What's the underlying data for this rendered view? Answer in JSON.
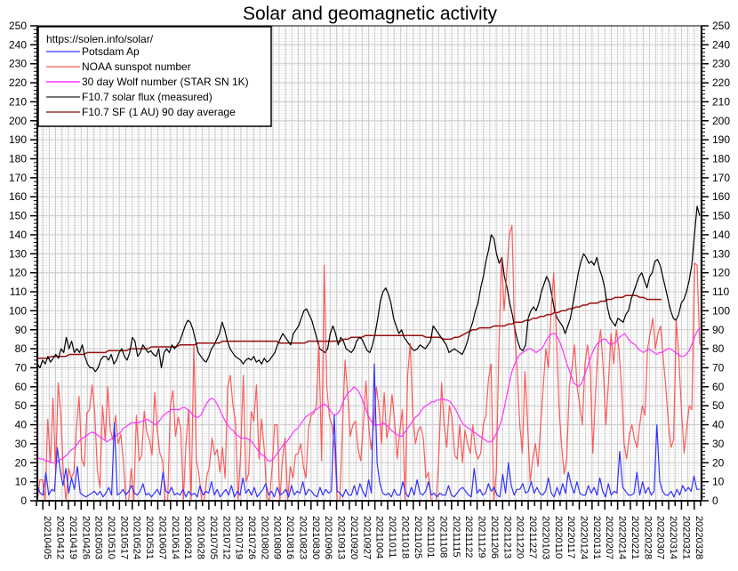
{
  "chart_data": {
    "type": "line",
    "title": "Solar and geomagnetic activity",
    "xlabel": "",
    "ylabel": "",
    "ylim": [
      0,
      250
    ],
    "yticks": [
      0,
      10,
      20,
      30,
      40,
      50,
      60,
      70,
      80,
      90,
      100,
      110,
      120,
      130,
      140,
      150,
      160,
      170,
      180,
      190,
      200,
      210,
      220,
      230,
      240,
      250
    ],
    "grid": true,
    "legend_position": "top-left",
    "legend_header": "https://solen.info/solar/",
    "x_start_date": "2021-04-02",
    "x_end_date": "2022-04-01",
    "x_step_days": 2,
    "xtick_labels": [
      "20210405",
      "20210412",
      "20210419",
      "20210426",
      "20210503",
      "20210510",
      "20210517",
      "20210524",
      "20210531",
      "20210607",
      "20210614",
      "20210621",
      "20210628",
      "20210705",
      "20210712",
      "20210719",
      "20210726",
      "20210802",
      "20210809",
      "20210816",
      "20210823",
      "20210830",
      "20210906",
      "20210913",
      "20210920",
      "20210927",
      "20211004",
      "20211011",
      "20211018",
      "20211025",
      "20211101",
      "20211108",
      "20211115",
      "20211122",
      "20211129",
      "20211206",
      "20211213",
      "20211220",
      "20211227",
      "20220103",
      "20220110",
      "20220117",
      "20220124",
      "20220131",
      "20220207",
      "20220214",
      "20220221",
      "20220228",
      "20220307",
      "20220314",
      "20220321",
      "20220328"
    ],
    "series": [
      {
        "name": "Potsdam Ap",
        "color": "#3333ff",
        "values": [
          8,
          4,
          3,
          15,
          3,
          6,
          5,
          28,
          16,
          8,
          17,
          4,
          12,
          6,
          18,
          4,
          3,
          2,
          3,
          4,
          5,
          3,
          5,
          2,
          4,
          7,
          3,
          41,
          3,
          4,
          6,
          3,
          5,
          8,
          4,
          3,
          5,
          9,
          3,
          4,
          2,
          4,
          6,
          3,
          15,
          5,
          4,
          7,
          3,
          4,
          3,
          6,
          2,
          5,
          3,
          4,
          2,
          8,
          3,
          5,
          4,
          10,
          3,
          6,
          2,
          4,
          6,
          3,
          8,
          2,
          5,
          3,
          12,
          4,
          6,
          3,
          7,
          2,
          4,
          6,
          9,
          3,
          5,
          2,
          7,
          3,
          4,
          6,
          2,
          8,
          3,
          5,
          4,
          10,
          3,
          6,
          5,
          3,
          2,
          7,
          3,
          6,
          4,
          5,
          45,
          5,
          4,
          2,
          6,
          3,
          3,
          8,
          3,
          9,
          5,
          2,
          11,
          4,
          72,
          20,
          9,
          4,
          3,
          4,
          2,
          6,
          3,
          3,
          10,
          4,
          2,
          7,
          3,
          11,
          4,
          3,
          5,
          10,
          3,
          4,
          2,
          4,
          3,
          3,
          8,
          3,
          2,
          4,
          6,
          7,
          5,
          3,
          2,
          17,
          4,
          6,
          3,
          4,
          9,
          5,
          7,
          3,
          2,
          14,
          4,
          20,
          8,
          3,
          6,
          6,
          9,
          4,
          5,
          10,
          4,
          7,
          4,
          3,
          5,
          12,
          4,
          2,
          7,
          3,
          9,
          4,
          15,
          8,
          4,
          10,
          4,
          3,
          3,
          8,
          4,
          7,
          3,
          12,
          5,
          2,
          9,
          3,
          5,
          4,
          26,
          7,
          5,
          3,
          3,
          4,
          15,
          3,
          10,
          4,
          7,
          3,
          5,
          40,
          10,
          5,
          3,
          3,
          5,
          2,
          6,
          3,
          8,
          5,
          7,
          5,
          13,
          6,
          6
        ],
        "note": "approximate daily values sampled every 2 days"
      },
      {
        "name": "NOAA sunspot number",
        "color": "#ff3333",
        "values": [
          0,
          11,
          11,
          0,
          43,
          20,
          54,
          16,
          62,
          45,
          14,
          0,
          17,
          12,
          15,
          38,
          55,
          22,
          18,
          46,
          48,
          61,
          47,
          16,
          7,
          50,
          32,
          60,
          37,
          32,
          45,
          30,
          35,
          20,
          0,
          0,
          17,
          0,
          45,
          21,
          24,
          47,
          36,
          32,
          24,
          57,
          37,
          25,
          21,
          0,
          0,
          50,
          58,
          34,
          44,
          38,
          0,
          30,
          48,
          0,
          82,
          21,
          14,
          0,
          0,
          13,
          18,
          33,
          24,
          27,
          15,
          28,
          12,
          60,
          66,
          50,
          42,
          0,
          27,
          66,
          10,
          14,
          47,
          42,
          61,
          22,
          43,
          27,
          2,
          0,
          17,
          40,
          40,
          0,
          22,
          33,
          0,
          18,
          12,
          24,
          25,
          30,
          18,
          12,
          38,
          45,
          46,
          50,
          83,
          21,
          124,
          60,
          44,
          40,
          28,
          0,
          0,
          38,
          74,
          56,
          34,
          40,
          42,
          27,
          21,
          40,
          63,
          40,
          27,
          40,
          60,
          49,
          30,
          57,
          33,
          40,
          56,
          42,
          22,
          37,
          48,
          0,
          66,
          83,
          44,
          30,
          37,
          39,
          33,
          12,
          15,
          0,
          0,
          0,
          25,
          62,
          40,
          28,
          50,
          44,
          24,
          22,
          40,
          20,
          37,
          30,
          25,
          40,
          26,
          22,
          25,
          40,
          45,
          64,
          72,
          0,
          15,
          80,
          128,
          100,
          120,
          140,
          145,
          90,
          70,
          40,
          25,
          68,
          40,
          10,
          22,
          30,
          18,
          40,
          60,
          80,
          70,
          100,
          120,
          90,
          50,
          30,
          14,
          22,
          60,
          70,
          82,
          60,
          50,
          40,
          72,
          82,
          70,
          25,
          55,
          80,
          90,
          70,
          40,
          62,
          88,
          72,
          90,
          80,
          60,
          30,
          22,
          35,
          40,
          32,
          28,
          40,
          50,
          45,
          80,
          88,
          96,
          80,
          88,
          92,
          75,
          60,
          40,
          28,
          32,
          95,
          75,
          48,
          25,
          38,
          50,
          48,
          125,
          124,
          82
        ]
      },
      {
        "name": "30 day Wolf number (STAR SN 1K)",
        "color": "#ff33ff",
        "values": [
          23,
          22,
          22,
          21,
          21,
          20,
          20,
          20,
          21,
          22,
          23,
          24,
          26,
          27,
          28,
          30,
          32,
          33,
          34,
          35,
          36,
          36,
          35,
          34,
          33,
          32,
          31,
          32,
          33,
          34,
          35,
          36,
          38,
          39,
          40,
          41,
          41,
          41,
          41,
          42,
          42,
          43,
          42,
          41,
          40,
          41,
          43,
          45,
          46,
          47,
          48,
          48,
          48,
          48,
          49,
          49,
          48,
          47,
          45,
          44,
          44,
          45,
          48,
          51,
          53,
          54,
          53,
          51,
          48,
          45,
          42,
          40,
          38,
          37,
          35,
          34,
          33,
          33,
          33,
          32,
          31,
          29,
          27,
          25,
          24,
          23,
          21,
          21,
          22,
          24,
          26,
          28,
          30,
          31,
          33,
          35,
          37,
          38,
          40,
          42,
          44,
          45,
          46,
          47,
          48,
          49,
          50,
          51,
          50,
          48,
          46,
          45,
          46,
          48,
          52,
          55,
          57,
          58,
          60,
          59,
          57,
          54,
          50,
          46,
          43,
          41,
          40,
          40,
          40,
          41,
          40,
          39,
          37,
          36,
          35,
          34,
          34,
          36,
          38,
          40,
          42,
          44,
          45,
          47,
          49,
          50,
          51,
          52,
          52,
          53,
          53,
          54,
          53,
          53,
          52,
          50,
          48,
          45,
          42,
          40,
          39,
          38,
          37,
          36,
          35,
          34,
          33,
          32,
          31,
          31,
          32,
          35,
          38,
          42,
          48,
          55,
          62,
          68,
          72,
          75,
          77,
          78,
          79,
          80,
          80,
          79,
          78,
          79,
          80,
          82,
          85,
          87,
          88,
          88,
          86,
          83,
          79,
          74,
          70,
          66,
          62,
          61,
          60,
          62,
          66,
          70,
          74,
          78,
          81,
          83,
          84,
          85,
          85,
          83,
          82,
          83,
          84,
          86,
          87,
          88,
          86,
          84,
          83,
          82,
          80,
          79,
          78,
          79,
          80,
          79,
          78,
          77,
          78,
          78,
          79,
          80,
          80,
          79,
          78,
          77,
          76,
          76,
          77,
          79,
          82,
          86,
          89,
          91
        ]
      },
      {
        "name": "F10.7 solar flux (measured)",
        "color": "#000000",
        "values": [
          72,
          70,
          74,
          72,
          76,
          73,
          75,
          77,
          75,
          80,
          78,
          86,
          80,
          84,
          78,
          80,
          78,
          82,
          76,
          72,
          70,
          70,
          68,
          70,
          74,
          76,
          76,
          74,
          77,
          72,
          74,
          78,
          80,
          76,
          74,
          78,
          86,
          84,
          76,
          78,
          82,
          80,
          78,
          79,
          77,
          76,
          80,
          70,
          78,
          80,
          78,
          82,
          80,
          82,
          84,
          88,
          92,
          95,
          94,
          90,
          84,
          78,
          76,
          74,
          73,
          76,
          80,
          82,
          85,
          88,
          94,
          90,
          84,
          80,
          78,
          76,
          75,
          74,
          72,
          74,
          75,
          74,
          76,
          73,
          74,
          72,
          75,
          73,
          74,
          76,
          78,
          82,
          85,
          88,
          86,
          84,
          82,
          88,
          90,
          92,
          96,
          100,
          101,
          98,
          95,
          90,
          85,
          80,
          79,
          78,
          80,
          88,
          92,
          88,
          82,
          86,
          84,
          80,
          79,
          78,
          80,
          84,
          86,
          85,
          82,
          79,
          78,
          82,
          88,
          96,
          105,
          110,
          112,
          109,
          104,
          96,
          92,
          88,
          90,
          86,
          84,
          82,
          80,
          79,
          80,
          82,
          81,
          80,
          82,
          84,
          92,
          90,
          88,
          86,
          84,
          82,
          78,
          79,
          80,
          79,
          78,
          77,
          80,
          84,
          90,
          94,
          100,
          104,
          112,
          118,
          126,
          132,
          140,
          138,
          130,
          125,
          128,
          118,
          112,
          104,
          98,
          90,
          84,
          80,
          79,
          82,
          96,
          100,
          102,
          100,
          104,
          110,
          114,
          118,
          115,
          108,
          100,
          96,
          94,
          92,
          88,
          92,
          96,
          104,
          112,
          120,
          126,
          130,
          128,
          125,
          126,
          124,
          128,
          122,
          118,
          112,
          102,
          96,
          94,
          92,
          96,
          95,
          94,
          98,
          100,
          106,
          110,
          114,
          118,
          120,
          116,
          112,
          118,
          120,
          126,
          127,
          124,
          118,
          112,
          106,
          100,
          96,
          95,
          98,
          104,
          106,
          110,
          116,
          124,
          140,
          155,
          150
        ]
      },
      {
        "name": "F10.7 SF (1 AU) 90 day average",
        "color": "#991111",
        "values": [
          75,
          75,
          75,
          75,
          76,
          76,
          76,
          76,
          76,
          77,
          77,
          77,
          77,
          77,
          78,
          78,
          78,
          78,
          78,
          78,
          79,
          79,
          79,
          79,
          79,
          79,
          80,
          80,
          80,
          80,
          80,
          80,
          81,
          81,
          81,
          81,
          81,
          81,
          81,
          81,
          82,
          82,
          82,
          82,
          82,
          83,
          83,
          83,
          83,
          83,
          83,
          83,
          84,
          84,
          84,
          84,
          84,
          84,
          84,
          84,
          84,
          84,
          84,
          84,
          84,
          84,
          84,
          84,
          83,
          83,
          83,
          83,
          83,
          83,
          83,
          83,
          84,
          84,
          84,
          84,
          84,
          84,
          84,
          84,
          84,
          84,
          85,
          85,
          86,
          86,
          86,
          86,
          87,
          87,
          87,
          87,
          87,
          87,
          87,
          87,
          87,
          87,
          87,
          87,
          87,
          87,
          87,
          87,
          87,
          86,
          86,
          86,
          86,
          86,
          85,
          85,
          85,
          86,
          86,
          87,
          88,
          89,
          90,
          90,
          91,
          91,
          91,
          91,
          92,
          92,
          92,
          92,
          93,
          93,
          94,
          94,
          94,
          95,
          95,
          96,
          96,
          97,
          97,
          98,
          98,
          99,
          99,
          100,
          100,
          101,
          101,
          102,
          102,
          103,
          103,
          104,
          104,
          104,
          105,
          105,
          106,
          106,
          107,
          107,
          107,
          108,
          108,
          108,
          108,
          107,
          107,
          106,
          106,
          106,
          106,
          106
        ]
      }
    ]
  }
}
